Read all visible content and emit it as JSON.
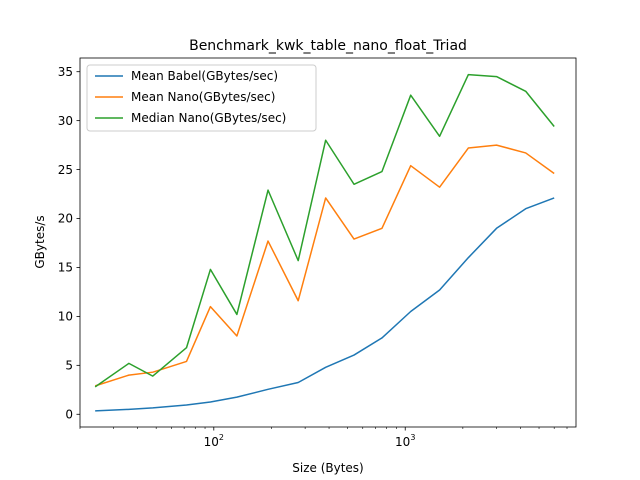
{
  "chart_data": {
    "type": "line",
    "title": "Benchmark_kwk_table_nano_float_Triad",
    "xlabel": "Size (Bytes)",
    "ylabel": "GBytes/s",
    "x_scale": "log",
    "x_range": [
      20,
      7800
    ],
    "ylim": [
      -1.3,
      36.4
    ],
    "x_ticks": [
      {
        "value": 100,
        "base": "10",
        "exp": "2"
      },
      {
        "value": 1000,
        "base": "10",
        "exp": "3"
      }
    ],
    "y_ticks": [
      0,
      5,
      10,
      15,
      20,
      25,
      30,
      35
    ],
    "grid": false,
    "legend_position": "upper-left",
    "x": [
      24,
      36,
      48,
      72,
      96,
      132,
      192,
      276,
      384,
      540,
      756,
      1068,
      1512,
      2136,
      3000,
      4260,
      6000
    ],
    "series": [
      {
        "name": "Mean Babel(GBytes/sec)",
        "color": "#1f77b4",
        "values": [
          0.35,
          0.5,
          0.65,
          0.95,
          1.25,
          1.75,
          2.55,
          3.25,
          4.8,
          6.05,
          7.8,
          10.5,
          12.7,
          16.0,
          19.0,
          21.0,
          22.1
        ]
      },
      {
        "name": "Mean Nano(GBytes/sec)",
        "color": "#ff7f0e",
        "values": [
          2.9,
          4.0,
          4.3,
          5.4,
          11.0,
          8.0,
          17.7,
          11.6,
          22.1,
          17.9,
          19.0,
          25.4,
          23.2,
          27.2,
          27.5,
          26.7,
          24.6
        ]
      },
      {
        "name": "Median Nano(GBytes/sec)",
        "color": "#2ca02c",
        "values": [
          2.8,
          5.2,
          3.9,
          6.8,
          14.8,
          10.2,
          22.9,
          15.7,
          28.0,
          23.5,
          24.8,
          32.6,
          28.4,
          34.7,
          34.5,
          33.0,
          29.4
        ]
      }
    ]
  }
}
